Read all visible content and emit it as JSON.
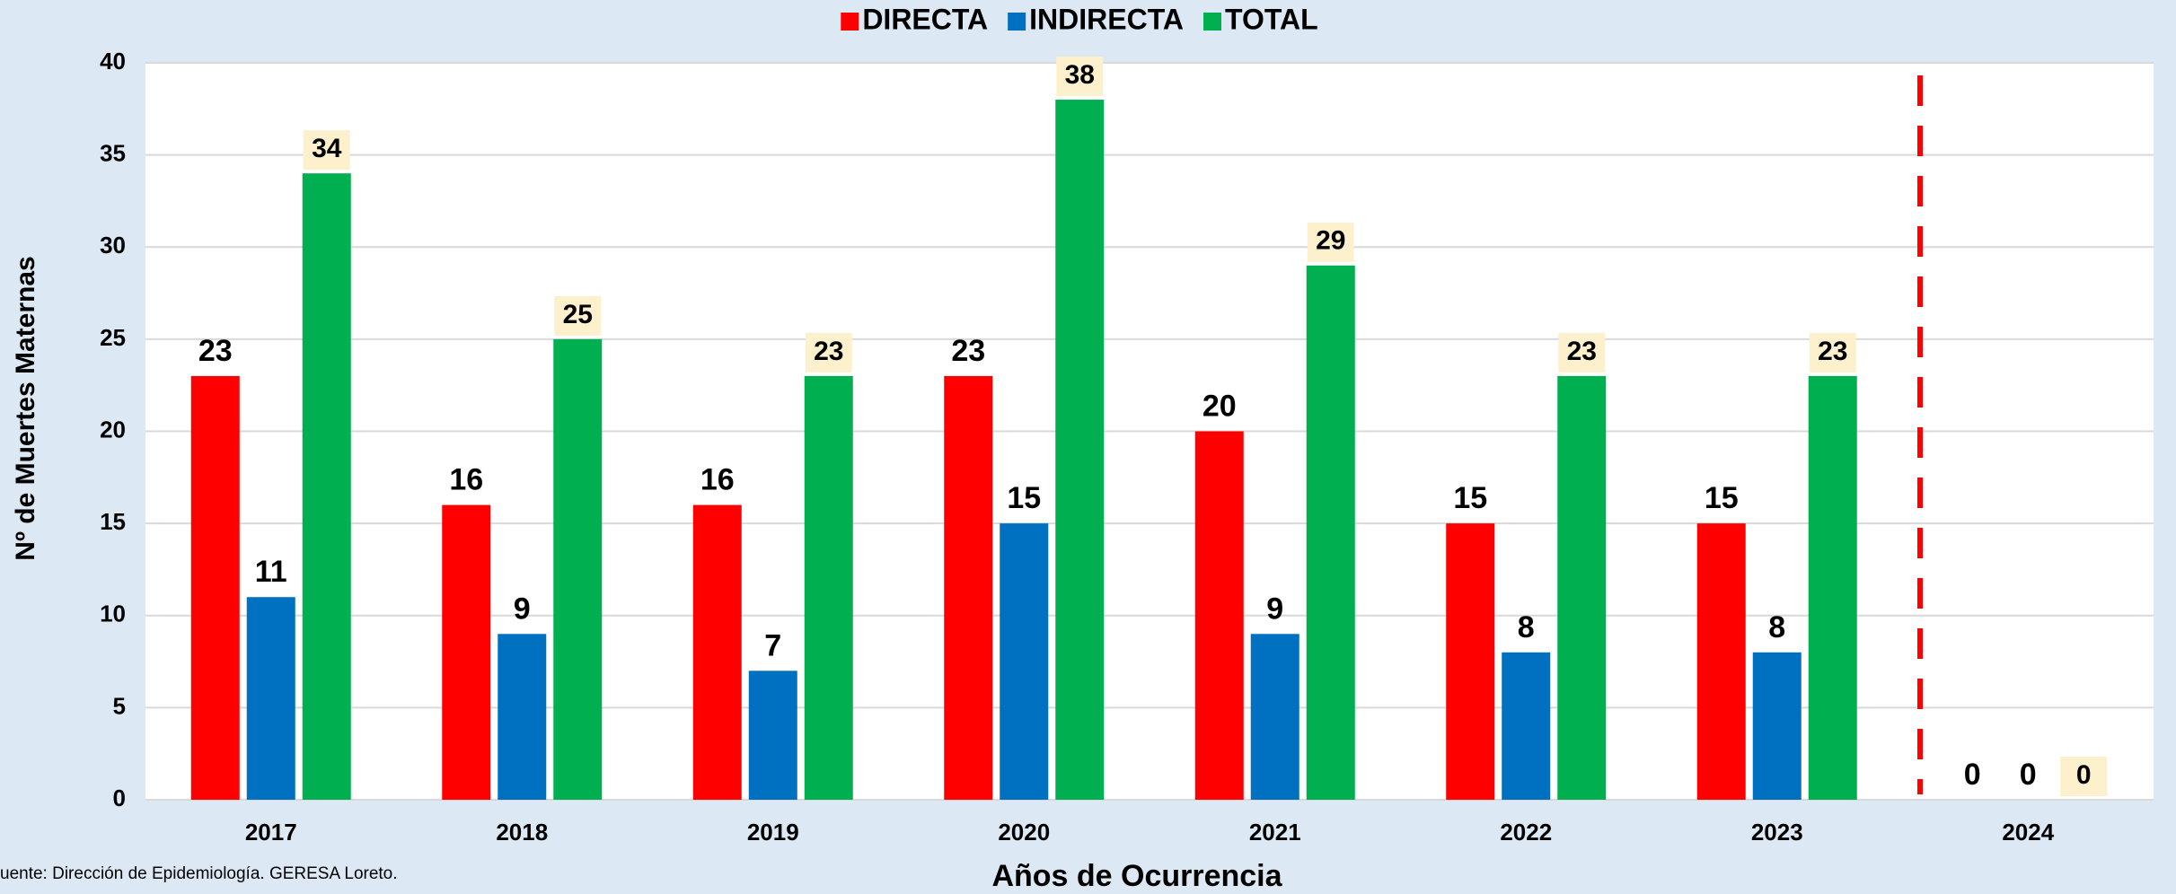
{
  "chart_data": {
    "type": "bar",
    "title": null,
    "x_label": "Años de Ocurrencia",
    "y_label": "Nº de Muertes Maternas",
    "source": "uente: Dirección de Epidemiología. GERESA Loreto.",
    "categories": [
      "2017",
      "2018",
      "2019",
      "2020",
      "2021",
      "2022",
      "2023",
      "2024"
    ],
    "series": [
      {
        "name": "DIRECTA",
        "color": "#ff0000",
        "values": [
          23,
          16,
          16,
          23,
          20,
          15,
          15,
          0
        ]
      },
      {
        "name": "INDIRECTA",
        "color": "#0070c0",
        "values": [
          11,
          9,
          7,
          15,
          9,
          8,
          8,
          0
        ]
      },
      {
        "name": "TOTAL",
        "color": "#00b050",
        "values": [
          34,
          25,
          23,
          38,
          29,
          23,
          23,
          0
        ]
      }
    ],
    "ylim": [
      0,
      40
    ],
    "yticks": [
      0,
      5,
      10,
      15,
      20,
      25,
      30,
      35,
      40
    ],
    "grid": true,
    "legend": "top"
  }
}
